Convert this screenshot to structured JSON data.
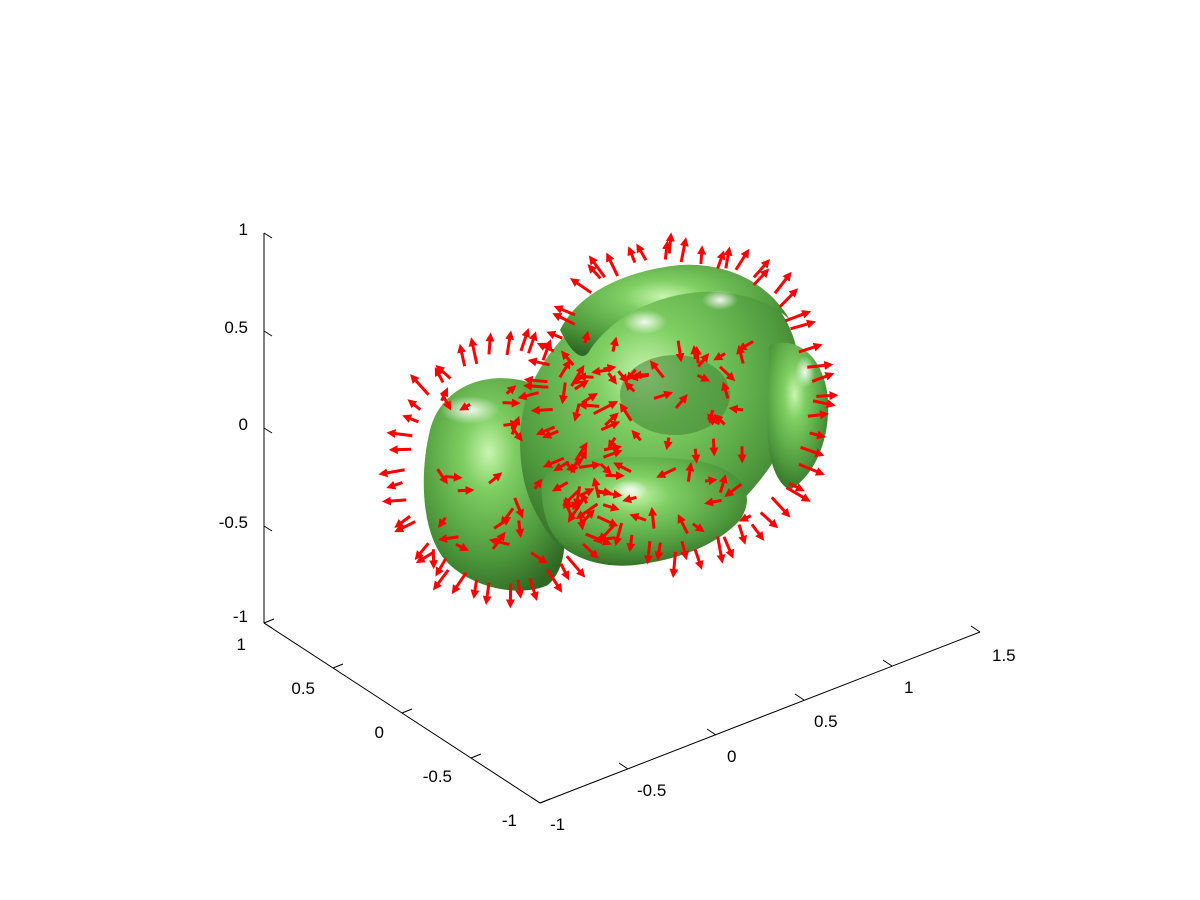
{
  "chart_data": {
    "type": "3d-surface-with-vectors",
    "title": "",
    "xlabel": "",
    "ylabel": "",
    "zlabel": "",
    "grid": false,
    "colors": {
      "surface": "#5fae4a",
      "surface_dark": "#2f6a24",
      "surface_light": "#b8f2a0",
      "arrows": "#ff0000",
      "axes": "#000000",
      "background": "#ffffff"
    },
    "axes": {
      "x": {
        "range": [
          -1,
          1.5
        ],
        "ticks": [
          -1,
          -0.5,
          0,
          0.5,
          1,
          1.5
        ],
        "tick_labels": [
          "-1",
          "-0.5",
          "0",
          "0.5",
          "1",
          "1.5"
        ]
      },
      "y": {
        "range": [
          -1,
          1
        ],
        "ticks": [
          -1,
          -0.5,
          0,
          0.5,
          1
        ],
        "tick_labels": [
          "-1",
          "-0.5",
          "0",
          "0.5",
          "1"
        ]
      },
      "z": {
        "range": [
          -1,
          1
        ],
        "ticks": [
          -1,
          -0.5,
          0,
          0.5,
          1
        ],
        "tick_labels": [
          "-1",
          "-0.5",
          "0",
          "0.5",
          "1"
        ]
      }
    },
    "surface": {
      "shape": "lumpy torus-like isosurface",
      "color": "#5fae4a"
    },
    "vectors": {
      "color": "#ff0000",
      "description": "surface normal arrows"
    }
  }
}
